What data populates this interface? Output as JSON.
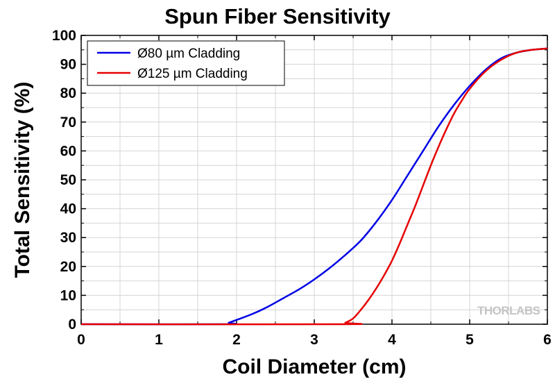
{
  "chart_data": {
    "type": "line",
    "title": "Spun Fiber Sensitivity",
    "xlabel": "Coil Diameter (cm)",
    "ylabel": "Total Sensitivity (%)",
    "xlim": [
      0,
      6
    ],
    "ylim": [
      0,
      100
    ],
    "xticks": [
      "0",
      "1",
      "2",
      "3",
      "4",
      "5",
      "6"
    ],
    "yticks": [
      "0",
      "10",
      "20",
      "30",
      "40",
      "50",
      "60",
      "70",
      "80",
      "90",
      "100"
    ],
    "grid": true,
    "legend_position": "top-left",
    "series": [
      {
        "name": "Ø80 µm Cladding",
        "color": "#0000e6",
        "x": [
          0,
          1.85,
          1.9,
          2.0,
          2.2,
          2.4,
          2.6,
          2.8,
          3.0,
          3.2,
          3.4,
          3.6,
          3.8,
          4.0,
          4.2,
          4.4,
          4.6,
          4.8,
          5.0,
          5.2,
          5.4,
          5.6,
          5.8,
          6.0
        ],
        "y": [
          0,
          0,
          0.5,
          1.5,
          3.5,
          6,
          9,
          12,
          15.5,
          19.5,
          24,
          29,
          35.5,
          43,
          51.5,
          60,
          68.5,
          76,
          82.5,
          88,
          92,
          94,
          95,
          95.5
        ]
      },
      {
        "name": "Ø125 µm Cladding",
        "color": "#e60000",
        "x": [
          0,
          3.35,
          3.4,
          3.5,
          3.6,
          3.7,
          3.8,
          3.9,
          4.0,
          4.1,
          4.2,
          4.3,
          4.4,
          4.5,
          4.6,
          4.7,
          4.8,
          4.9,
          5.0,
          5.2,
          5.4,
          5.6,
          5.8,
          6.0
        ],
        "y": [
          0,
          0,
          0.5,
          2,
          5,
          8.5,
          12.5,
          17,
          22,
          28,
          34.5,
          41,
          48,
          55,
          61.5,
          67.5,
          73,
          77.5,
          81.5,
          87.5,
          91.5,
          94,
          95,
          95.5
        ]
      }
    ]
  },
  "watermark": "THORLABS"
}
